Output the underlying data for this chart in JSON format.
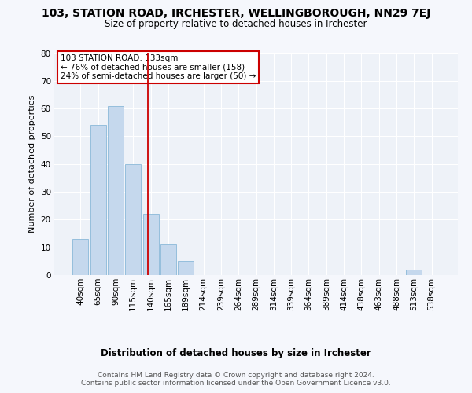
{
  "title": "103, STATION ROAD, IRCHESTER, WELLINGBOROUGH, NN29 7EJ",
  "subtitle": "Size of property relative to detached houses in Irchester",
  "xlabel": "Distribution of detached houses by size in Irchester",
  "ylabel": "Number of detached properties",
  "bin_labels": [
    "40sqm",
    "65sqm",
    "90sqm",
    "115sqm",
    "140sqm",
    "165sqm",
    "189sqm",
    "214sqm",
    "239sqm",
    "264sqm",
    "289sqm",
    "314sqm",
    "339sqm",
    "364sqm",
    "389sqm",
    "414sqm",
    "438sqm",
    "463sqm",
    "488sqm",
    "513sqm",
    "538sqm"
  ],
  "bar_heights": [
    13,
    54,
    61,
    40,
    22,
    11,
    5,
    0,
    0,
    0,
    0,
    0,
    0,
    0,
    0,
    0,
    0,
    0,
    0,
    2,
    0
  ],
  "bar_color": "#c5d8ed",
  "bar_edge_color": "#8ab8d8",
  "vline_x": 3.82,
  "vline_color": "#cc0000",
  "annotation_text": "103 STATION ROAD: 133sqm\n← 76% of detached houses are smaller (158)\n24% of semi-detached houses are larger (50) →",
  "annotation_box_color": "#ffffff",
  "annotation_box_edge": "#cc0000",
  "ylim": [
    0,
    80
  ],
  "yticks": [
    0,
    10,
    20,
    30,
    40,
    50,
    60,
    70,
    80
  ],
  "bg_color": "#eef2f8",
  "grid_color": "#ffffff",
  "fig_bg_color": "#f5f7fc",
  "footer": "Contains HM Land Registry data © Crown copyright and database right 2024.\nContains public sector information licensed under the Open Government Licence v3.0.",
  "title_fontsize": 10,
  "subtitle_fontsize": 8.5,
  "ylabel_fontsize": 8,
  "xlabel_fontsize": 8.5,
  "tick_fontsize": 7.5,
  "footer_fontsize": 6.5,
  "annot_fontsize": 7.5
}
